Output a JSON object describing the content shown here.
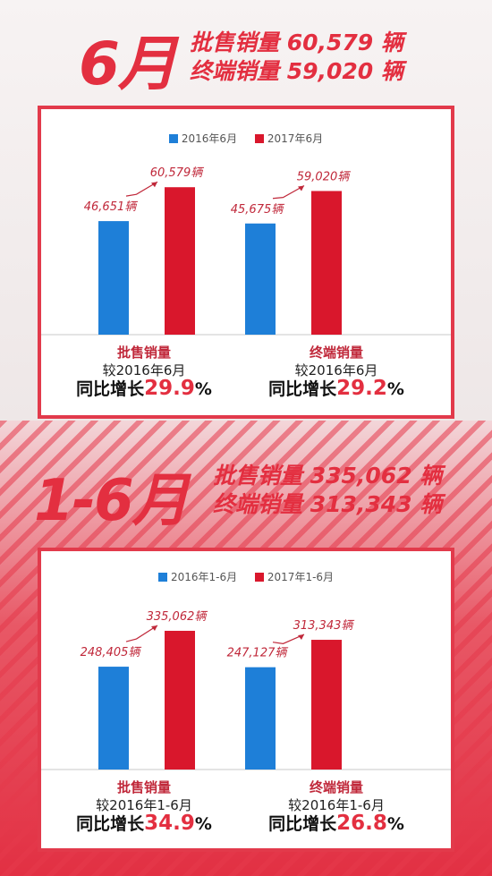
{
  "section1": {
    "month": "6月",
    "wholesale_line": "批售销量 60,579 辆",
    "retail_line": "终端销量 59,020 辆",
    "legend": {
      "a": "2016年6月",
      "b": "2017年6月"
    },
    "colors": {
      "a": "#1e7fd8",
      "b": "#d9172c"
    },
    "groups": [
      {
        "category": "批售销量",
        "compare": "较2016年6月",
        "growth_prefix": "同比增长",
        "growth_value": "29.9",
        "growth_unit": "%"
      },
      {
        "category": "终端销量",
        "compare": "较2016年6月",
        "growth_prefix": "同比增长",
        "growth_value": "29.2",
        "growth_unit": "%"
      }
    ]
  },
  "section2": {
    "month": "1-6月",
    "wholesale_line": "批售销量 335,062 辆",
    "retail_line": "终端销量 313,343 辆",
    "legend": {
      "a": "2016年1-6月",
      "b": "2017年1-6月"
    },
    "colors": {
      "a": "#1e7fd8",
      "b": "#d9172c"
    },
    "groups": [
      {
        "category": "批售销量",
        "compare": "较2016年1-6月",
        "growth_prefix": "同比增长",
        "growth_value": "34.9",
        "growth_unit": "%"
      },
      {
        "category": "终端销量",
        "compare": "较2016年1-6月",
        "growth_prefix": "同比增长",
        "growth_value": "26.8",
        "growth_unit": "%"
      }
    ]
  },
  "chart_data": [
    {
      "type": "bar",
      "categories": [
        "批售销量",
        "终端销量"
      ],
      "series": [
        {
          "name": "2016年6月",
          "values": [
            46651,
            45675
          ],
          "labels": [
            "46,651辆",
            "45,675辆"
          ]
        },
        {
          "name": "2017年6月",
          "values": [
            60579,
            59020
          ],
          "labels": [
            "60,579辆",
            "59,020辆"
          ]
        }
      ],
      "ylim": [
        0,
        75000
      ]
    },
    {
      "type": "bar",
      "categories": [
        "批售销量",
        "终端销量"
      ],
      "series": [
        {
          "name": "2016年1-6月",
          "values": [
            248405,
            247127
          ],
          "labels": [
            "248,405辆",
            "247,127辆"
          ]
        },
        {
          "name": "2017年1-6月",
          "values": [
            335062,
            313343
          ],
          "labels": [
            "335,062辆",
            "313,343辆"
          ]
        }
      ],
      "ylim": [
        0,
        415000
      ]
    }
  ]
}
